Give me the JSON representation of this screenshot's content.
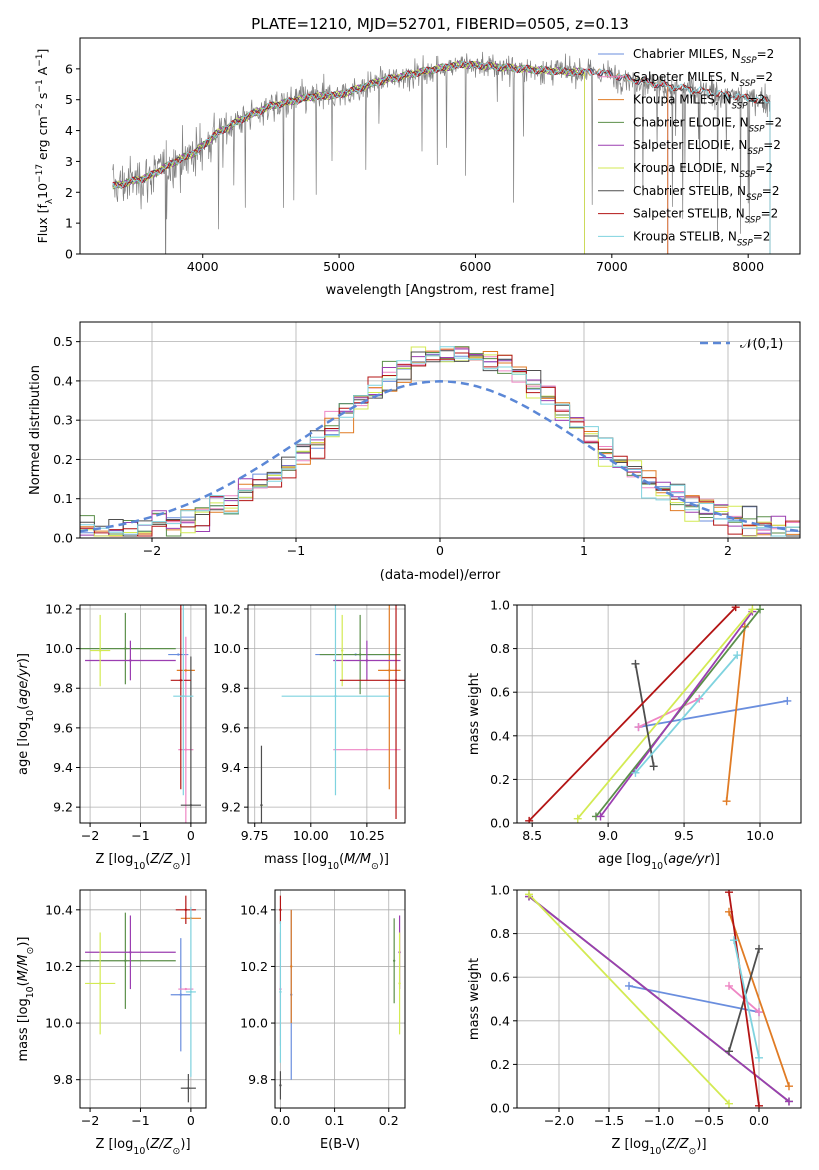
{
  "title": "PLATE=1210, MJD=52701, FIBERID=0505, z=0.13",
  "colors": {
    "Chabrier MILES": "#6a8ede",
    "Salpeter MILES": "#ee86c4",
    "Kroupa MILES": "#e07b24",
    "Chabrier ELODIE": "#5b8f4a",
    "Salpeter ELODIE": "#9b3eb1",
    "Kroupa ELODIE": "#d3ea53",
    "Chabrier STELIB": "#4e4e4e",
    "Salpeter STELIB": "#b31414",
    "Kroupa STELIB": "#7fd3df"
  },
  "legend_labels": [
    "Chabrier MILES, N_SSP=2",
    "Salpeter MILES, N_SSP=2",
    "Kroupa MILES, N_SSP=2",
    "Chabrier ELODIE, N_SSP=2",
    "Salpeter ELODIE, N_SSP=2",
    "Kroupa ELODIE, N_SSP=2",
    "Chabrier STELIB, N_SSP=2",
    "Salpeter STELIB, N_SSP=2",
    "Kroupa STELIB, N_SSP=2"
  ],
  "chart_data": [
    {
      "id": "spectrum",
      "type": "line",
      "xlabel": "wavelength [Angstrom, rest frame]",
      "ylabel": "Flux [f_λ 10^-17 erg cm^-2 s^-1 A^-1]",
      "xlim": [
        3100,
        8380
      ],
      "ylim": [
        0,
        7
      ],
      "xticks": [
        4000,
        5000,
        6000,
        7000,
        8000
      ],
      "yticks": [
        0,
        1,
        2,
        3,
        4,
        5,
        6
      ],
      "continuum_anchors": [
        [
          3350,
          2.2
        ],
        [
          3600,
          2.5
        ],
        [
          3800,
          3.0
        ],
        [
          3950,
          3.3
        ],
        [
          4100,
          3.9
        ],
        [
          4300,
          4.4
        ],
        [
          4500,
          4.8
        ],
        [
          4800,
          5.1
        ],
        [
          5000,
          5.15
        ],
        [
          5300,
          5.6
        ],
        [
          5600,
          5.9
        ],
        [
          5900,
          6.15
        ],
        [
          6200,
          6.05
        ],
        [
          6500,
          5.95
        ],
        [
          6700,
          5.9
        ],
        [
          6900,
          5.9
        ],
        [
          7100,
          5.7
        ],
        [
          7400,
          5.45
        ],
        [
          7700,
          5.25
        ],
        [
          8000,
          5.05
        ],
        [
          8150,
          4.95
        ]
      ],
      "data_range": [
        3340,
        8160
      ],
      "series_ranges": {
        "MILES": [
          3340,
          7410
        ],
        "ELODIE": [
          3340,
          6800
        ],
        "STELIB": [
          3340,
          8160
        ]
      },
      "grid": false,
      "legend": "right"
    },
    {
      "id": "residuals",
      "type": "histogram",
      "xlabel": "(data-model)/error",
      "ylabel": "Normed distribution",
      "xlim": [
        -2.5,
        2.5
      ],
      "ylim": [
        0,
        0.55
      ],
      "xticks": [
        -2,
        -1,
        0,
        1,
        2
      ],
      "yticks": [
        0.0,
        0.1,
        0.2,
        0.3,
        0.4,
        0.5
      ],
      "bin_edges": [
        -2.5,
        2.5
      ],
      "bin_count": 50,
      "overlay": {
        "name": "𝒩(0,1)",
        "mean": 0,
        "sigma": 1
      },
      "grid": true,
      "legend": "upper right"
    },
    {
      "id": "age_vs_Z",
      "type": "errorbar",
      "xlabel": "Z [log10(Z/Z_sun)]",
      "ylabel": "age [log10(age/yr)]",
      "xlim": [
        -2.2,
        0.3
      ],
      "ylim": [
        9.12,
        10.22
      ],
      "xticks": [
        -2,
        -1,
        0
      ],
      "yticks": [
        9.2,
        9.4,
        9.6,
        9.8,
        10.0,
        10.2
      ],
      "points": [
        {
          "s": "Chabrier MILES",
          "x": -0.25,
          "y": 9.97,
          "xerr": 0.2,
          "yerr": 0.0
        },
        {
          "s": "Salpeter MILES",
          "x": -0.1,
          "y": 9.49,
          "xerr": 0.15,
          "yerr": 0.57
        },
        {
          "s": "Kroupa MILES",
          "x": -0.1,
          "y": 9.89,
          "xerr": 0.18,
          "yerr": 0.0
        },
        {
          "s": "Chabrier ELODIE",
          "x": -1.3,
          "y": 10.0,
          "xerr": 1.0,
          "yerr": 0.18
        },
        {
          "s": "Salpeter ELODIE",
          "x": -1.2,
          "y": 9.94,
          "xerr": 0.9,
          "yerr": 0.1
        },
        {
          "s": "Kroupa ELODIE",
          "x": -1.8,
          "y": 9.99,
          "xerr": 0.2,
          "yerr": 0.18
        },
        {
          "s": "Chabrier STELIB",
          "x": 0.0,
          "y": 9.21,
          "xerr": 0.2,
          "yerr": 0.75
        },
        {
          "s": "Salpeter STELIB",
          "x": -0.2,
          "y": 9.84,
          "xerr": 0.2,
          "yerr": 0.55
        },
        {
          "s": "Kroupa STELIB",
          "x": -0.15,
          "y": 9.76,
          "xerr": 0.2,
          "yerr": 0.5
        }
      ]
    },
    {
      "id": "age_vs_mass",
      "type": "errorbar",
      "xlabel": "mass [log10(M/M_sun)]",
      "ylabel": "",
      "xlim": [
        9.72,
        10.42
      ],
      "ylim": [
        9.12,
        10.22
      ],
      "xticks": [
        9.75,
        10.0,
        10.25
      ],
      "yticks": [
        9.2,
        9.4,
        9.6,
        9.8,
        10.0,
        10.2
      ],
      "points": [
        {
          "s": "Chabrier MILES",
          "x": 10.2,
          "y": 9.97,
          "xerr": 0.18,
          "yerr": 0.0
        },
        {
          "s": "Salpeter MILES",
          "x": 10.25,
          "y": 9.49,
          "xerr": 0.15,
          "yerr": 0.0
        },
        {
          "s": "Kroupa MILES",
          "x": 10.35,
          "y": 9.89,
          "xerr": 0.05,
          "yerr": 0.6
        },
        {
          "s": "Chabrier ELODIE",
          "x": 10.22,
          "y": 9.97,
          "xerr": 0.18,
          "yerr": 0.2
        },
        {
          "s": "Salpeter ELODIE",
          "x": 10.25,
          "y": 9.94,
          "xerr": 0.15,
          "yerr": 0.1
        },
        {
          "s": "Kroupa ELODIE",
          "x": 10.14,
          "y": 9.99,
          "xerr": 0.0,
          "yerr": 0.18
        },
        {
          "s": "Chabrier STELIB",
          "x": 9.78,
          "y": 9.21,
          "xerr": 0.0,
          "yerr": 0.3
        },
        {
          "s": "Salpeter STELIB",
          "x": 10.38,
          "y": 9.84,
          "xerr": 0.25,
          "yerr": 0.7
        },
        {
          "s": "Kroupa STELIB",
          "x": 10.11,
          "y": 9.76,
          "xerr": 0.24,
          "yerr": 0.5
        }
      ]
    },
    {
      "id": "weight_vs_age",
      "type": "line",
      "xlabel": "age [log10(age/yr)]",
      "ylabel": "mass weight",
      "xlim": [
        8.4,
        10.27
      ],
      "ylim": [
        0,
        1
      ],
      "xticks": [
        8.5,
        9.0,
        9.5,
        10.0
      ],
      "yticks": [
        0.0,
        0.2,
        0.4,
        0.6,
        0.8,
        1.0
      ],
      "series": [
        {
          "s": "Chabrier MILES",
          "x": [
            9.2,
            10.18
          ],
          "y": [
            0.44,
            0.56
          ]
        },
        {
          "s": "Salpeter MILES",
          "x": [
            9.2,
            9.6
          ],
          "y": [
            0.44,
            0.57
          ]
        },
        {
          "s": "Kroupa MILES",
          "x": [
            9.78,
            9.9
          ],
          "y": [
            0.1,
            0.9
          ]
        },
        {
          "s": "Chabrier ELODIE",
          "x": [
            8.92,
            10.0
          ],
          "y": [
            0.03,
            0.98
          ]
        },
        {
          "s": "Salpeter ELODIE",
          "x": [
            8.95,
            9.95
          ],
          "y": [
            0.03,
            0.97
          ]
        },
        {
          "s": "Kroupa ELODIE",
          "x": [
            8.8,
            9.95
          ],
          "y": [
            0.02,
            0.98
          ]
        },
        {
          "s": "Chabrier STELIB",
          "x": [
            9.18,
            9.3
          ],
          "y": [
            0.73,
            0.26
          ]
        },
        {
          "s": "Salpeter STELIB",
          "x": [
            8.48,
            9.84
          ],
          "y": [
            0.01,
            0.99
          ]
        },
        {
          "s": "Kroupa STELIB",
          "x": [
            9.18,
            9.85
          ],
          "y": [
            0.23,
            0.77
          ]
        }
      ]
    },
    {
      "id": "mass_vs_Z",
      "type": "errorbar",
      "xlabel": "Z [log10(Z/Z_sun)]",
      "ylabel": "mass [log10(M/M_sun)]",
      "xlim": [
        -2.2,
        0.3
      ],
      "ylim": [
        9.7,
        10.47
      ],
      "xticks": [
        -2,
        -1,
        0
      ],
      "yticks": [
        9.8,
        10.0,
        10.2,
        10.4
      ],
      "points": [
        {
          "s": "Chabrier MILES",
          "x": -0.2,
          "y": 10.1,
          "xerr": 0.2,
          "yerr": 0.2
        },
        {
          "s": "Salpeter MILES",
          "x": -0.1,
          "y": 10.12,
          "xerr": 0.15,
          "yerr": 0.0
        },
        {
          "s": "Kroupa MILES",
          "x": 0.0,
          "y": 10.37,
          "xerr": 0.2,
          "yerr": 0.0
        },
        {
          "s": "Chabrier ELODIE",
          "x": -1.3,
          "y": 10.22,
          "xerr": 1.0,
          "yerr": 0.17
        },
        {
          "s": "Salpeter ELODIE",
          "x": -1.2,
          "y": 10.25,
          "xerr": 0.9,
          "yerr": 0.13
        },
        {
          "s": "Kroupa ELODIE",
          "x": -1.8,
          "y": 10.14,
          "xerr": 0.3,
          "yerr": 0.18
        },
        {
          "s": "Chabrier STELIB",
          "x": -0.05,
          "y": 9.77,
          "xerr": 0.15,
          "yerr": 0.05
        },
        {
          "s": "Salpeter STELIB",
          "x": -0.1,
          "y": 10.4,
          "xerr": 0.2,
          "yerr": 0.05
        },
        {
          "s": "Kroupa STELIB",
          "x": 0.0,
          "y": 10.11,
          "xerr": 0.1,
          "yerr": 0.3
        }
      ]
    },
    {
      "id": "mass_vs_ebv",
      "type": "errorbar",
      "xlabel": "E(B-V)",
      "ylabel": "",
      "xlim": [
        -0.01,
        0.23
      ],
      "ylim": [
        9.7,
        10.47
      ],
      "xticks": [
        0.0,
        0.1,
        0.2
      ],
      "yticks": [
        9.8,
        10.0,
        10.2,
        10.4
      ],
      "points": [
        {
          "s": "Chabrier MILES",
          "x": 0.02,
          "y": 10.1,
          "xerr": 0.0,
          "yerr": 0.3
        },
        {
          "s": "Salpeter MILES",
          "x": 0.0,
          "y": 10.12,
          "xerr": 0.0,
          "yerr": 0.2
        },
        {
          "s": "Kroupa MILES",
          "x": 0.02,
          "y": 10.2,
          "xerr": 0.0,
          "yerr": 0.2
        },
        {
          "s": "Chabrier ELODIE",
          "x": 0.21,
          "y": 10.22,
          "xerr": 0.0,
          "yerr": 0.15
        },
        {
          "s": "Salpeter ELODIE",
          "x": 0.22,
          "y": 10.25,
          "xerr": 0.0,
          "yerr": 0.13
        },
        {
          "s": "Kroupa ELODIE",
          "x": 0.22,
          "y": 10.14,
          "xerr": 0.0,
          "yerr": 0.18
        },
        {
          "s": "Chabrier STELIB",
          "x": 0.0,
          "y": 9.78,
          "xerr": 0.0,
          "yerr": 0.05
        },
        {
          "s": "Salpeter STELIB",
          "x": 0.0,
          "y": 10.4,
          "xerr": 0.0,
          "yerr": 0.05
        },
        {
          "s": "Kroupa STELIB",
          "x": 0.0,
          "y": 10.11,
          "xerr": 0.0,
          "yerr": 0.25
        }
      ]
    },
    {
      "id": "weight_vs_Z",
      "type": "line",
      "xlabel": "Z [log10(Z/Z_sun)]",
      "ylabel": "mass weight",
      "xlim": [
        -2.42,
        0.42
      ],
      "ylim": [
        0,
        1
      ],
      "xticks": [
        -2.0,
        -1.5,
        -1.0,
        -0.5,
        0.0
      ],
      "yticks": [
        0.0,
        0.2,
        0.4,
        0.6,
        0.8,
        1.0
      ],
      "series": [
        {
          "s": "Chabrier MILES",
          "x": [
            -1.3,
            0.0
          ],
          "y": [
            0.56,
            0.44
          ]
        },
        {
          "s": "Salpeter MILES",
          "x": [
            -0.3,
            0.0
          ],
          "y": [
            0.56,
            0.44
          ]
        },
        {
          "s": "Kroupa MILES",
          "x": [
            -0.3,
            0.3
          ],
          "y": [
            0.9,
            0.1
          ]
        },
        {
          "s": "Chabrier ELODIE",
          "x": [
            -2.3,
            0.3
          ],
          "y": [
            0.97,
            0.03
          ]
        },
        {
          "s": "Salpeter ELODIE",
          "x": [
            -2.3,
            0.3
          ],
          "y": [
            0.97,
            0.03
          ]
        },
        {
          "s": "Kroupa ELODIE",
          "x": [
            -2.3,
            -0.3
          ],
          "y": [
            0.98,
            0.02
          ]
        },
        {
          "s": "Chabrier STELIB",
          "x": [
            -0.3,
            0.0
          ],
          "y": [
            0.26,
            0.73
          ]
        },
        {
          "s": "Salpeter STELIB",
          "x": [
            -0.3,
            0.0
          ],
          "y": [
            0.99,
            0.01
          ]
        },
        {
          "s": "Kroupa STELIB",
          "x": [
            -0.25,
            0.0
          ],
          "y": [
            0.77,
            0.23
          ]
        }
      ]
    }
  ]
}
